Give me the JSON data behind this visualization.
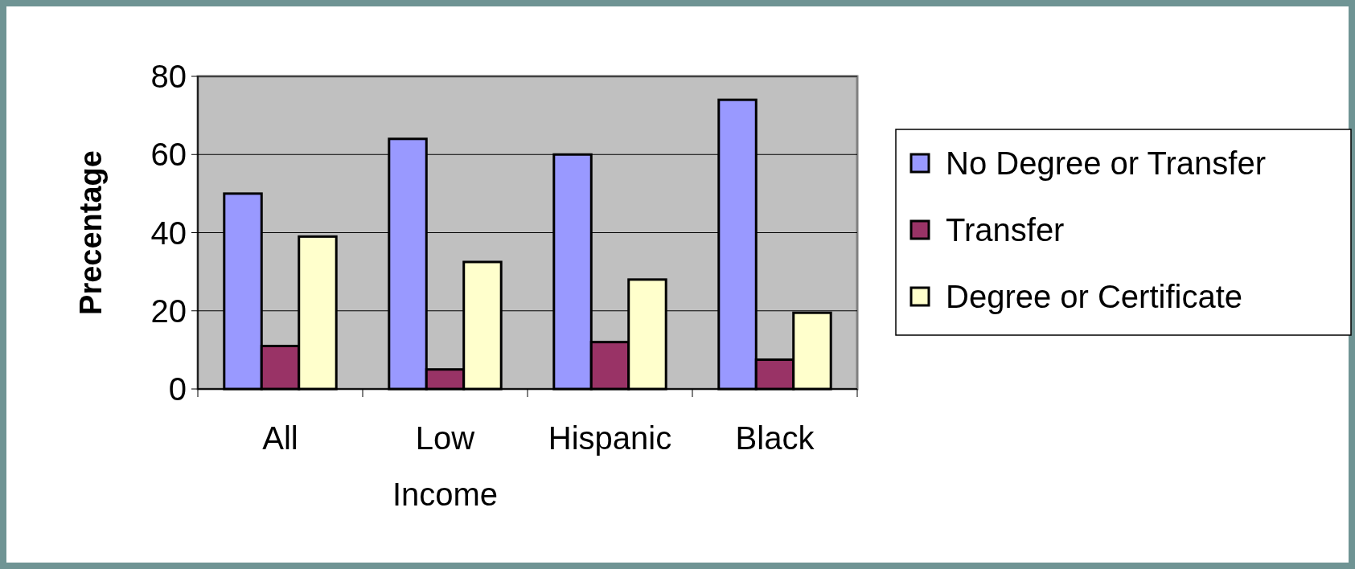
{
  "chart_data": {
    "type": "bar",
    "ylabel": "Precentage",
    "categories": [
      "All",
      "Low Income",
      "Hispanic",
      "Black"
    ],
    "series": [
      {
        "name": "No Degree or Transfer",
        "color": "#9999ff",
        "values": [
          50,
          64,
          60,
          74
        ]
      },
      {
        "name": "Transfer",
        "color": "#993366",
        "values": [
          11,
          5,
          12,
          7.5
        ]
      },
      {
        "name": "Degree or Certificate",
        "color": "#ffffcc",
        "values": [
          39,
          32.5,
          28,
          19.5
        ]
      }
    ],
    "ylim": [
      0,
      80
    ],
    "yticks": [
      0,
      20,
      40,
      60,
      80
    ],
    "grid": "y",
    "legend": "right"
  }
}
